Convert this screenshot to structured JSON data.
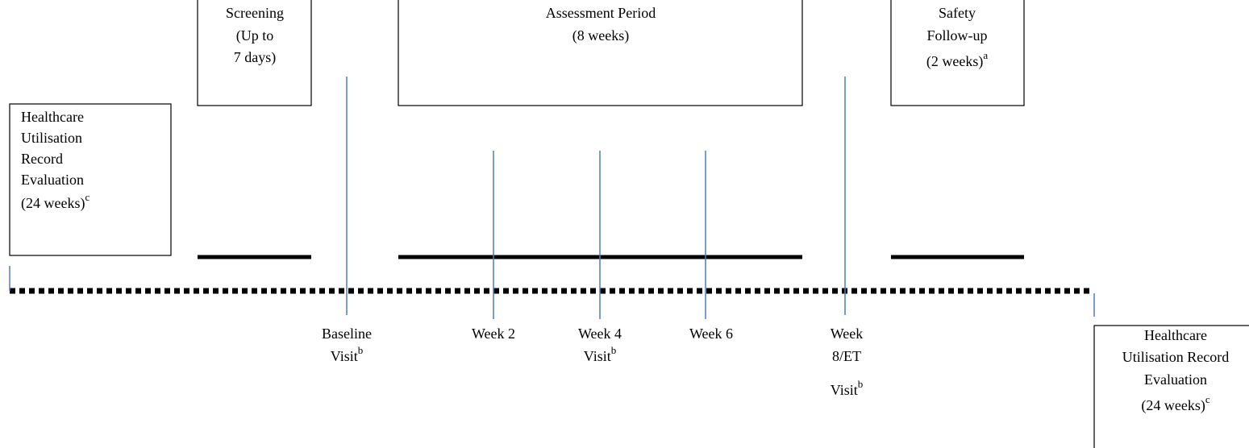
{
  "boxes": [
    {
      "lines": [
        "Healthcare",
        "Utilisation",
        "Record",
        "Evaluation",
        "(24 weeks)"
      ],
      "note": "c"
    },
    {
      "lines": [
        "Screening",
        "(Up to",
        "7 days)"
      ]
    },
    {
      "lines": [
        "Assessment Period",
        "(8 weeks)"
      ]
    },
    {
      "lines": [
        "Safety",
        "Follow-up",
        "(2 weeks)"
      ],
      "note": "a"
    }
  ],
  "visits": [
    {
      "lines": [
        "Baseline",
        "Visit"
      ],
      "note": "b"
    },
    {
      "lines": [
        "Week 2"
      ]
    },
    {
      "lines": [
        "Week 4",
        "Visit"
      ],
      "note": "b"
    },
    {
      "lines": [
        "Week 6"
      ]
    },
    {
      "lines": [
        "Week",
        "8/ET",
        "Visit"
      ],
      "note": "b"
    }
  ],
  "end_box": {
    "lines": [
      "Healthcare",
      "Utilisation Record",
      "Evaluation",
      "(24 weeks)"
    ],
    "note": "c"
  }
}
